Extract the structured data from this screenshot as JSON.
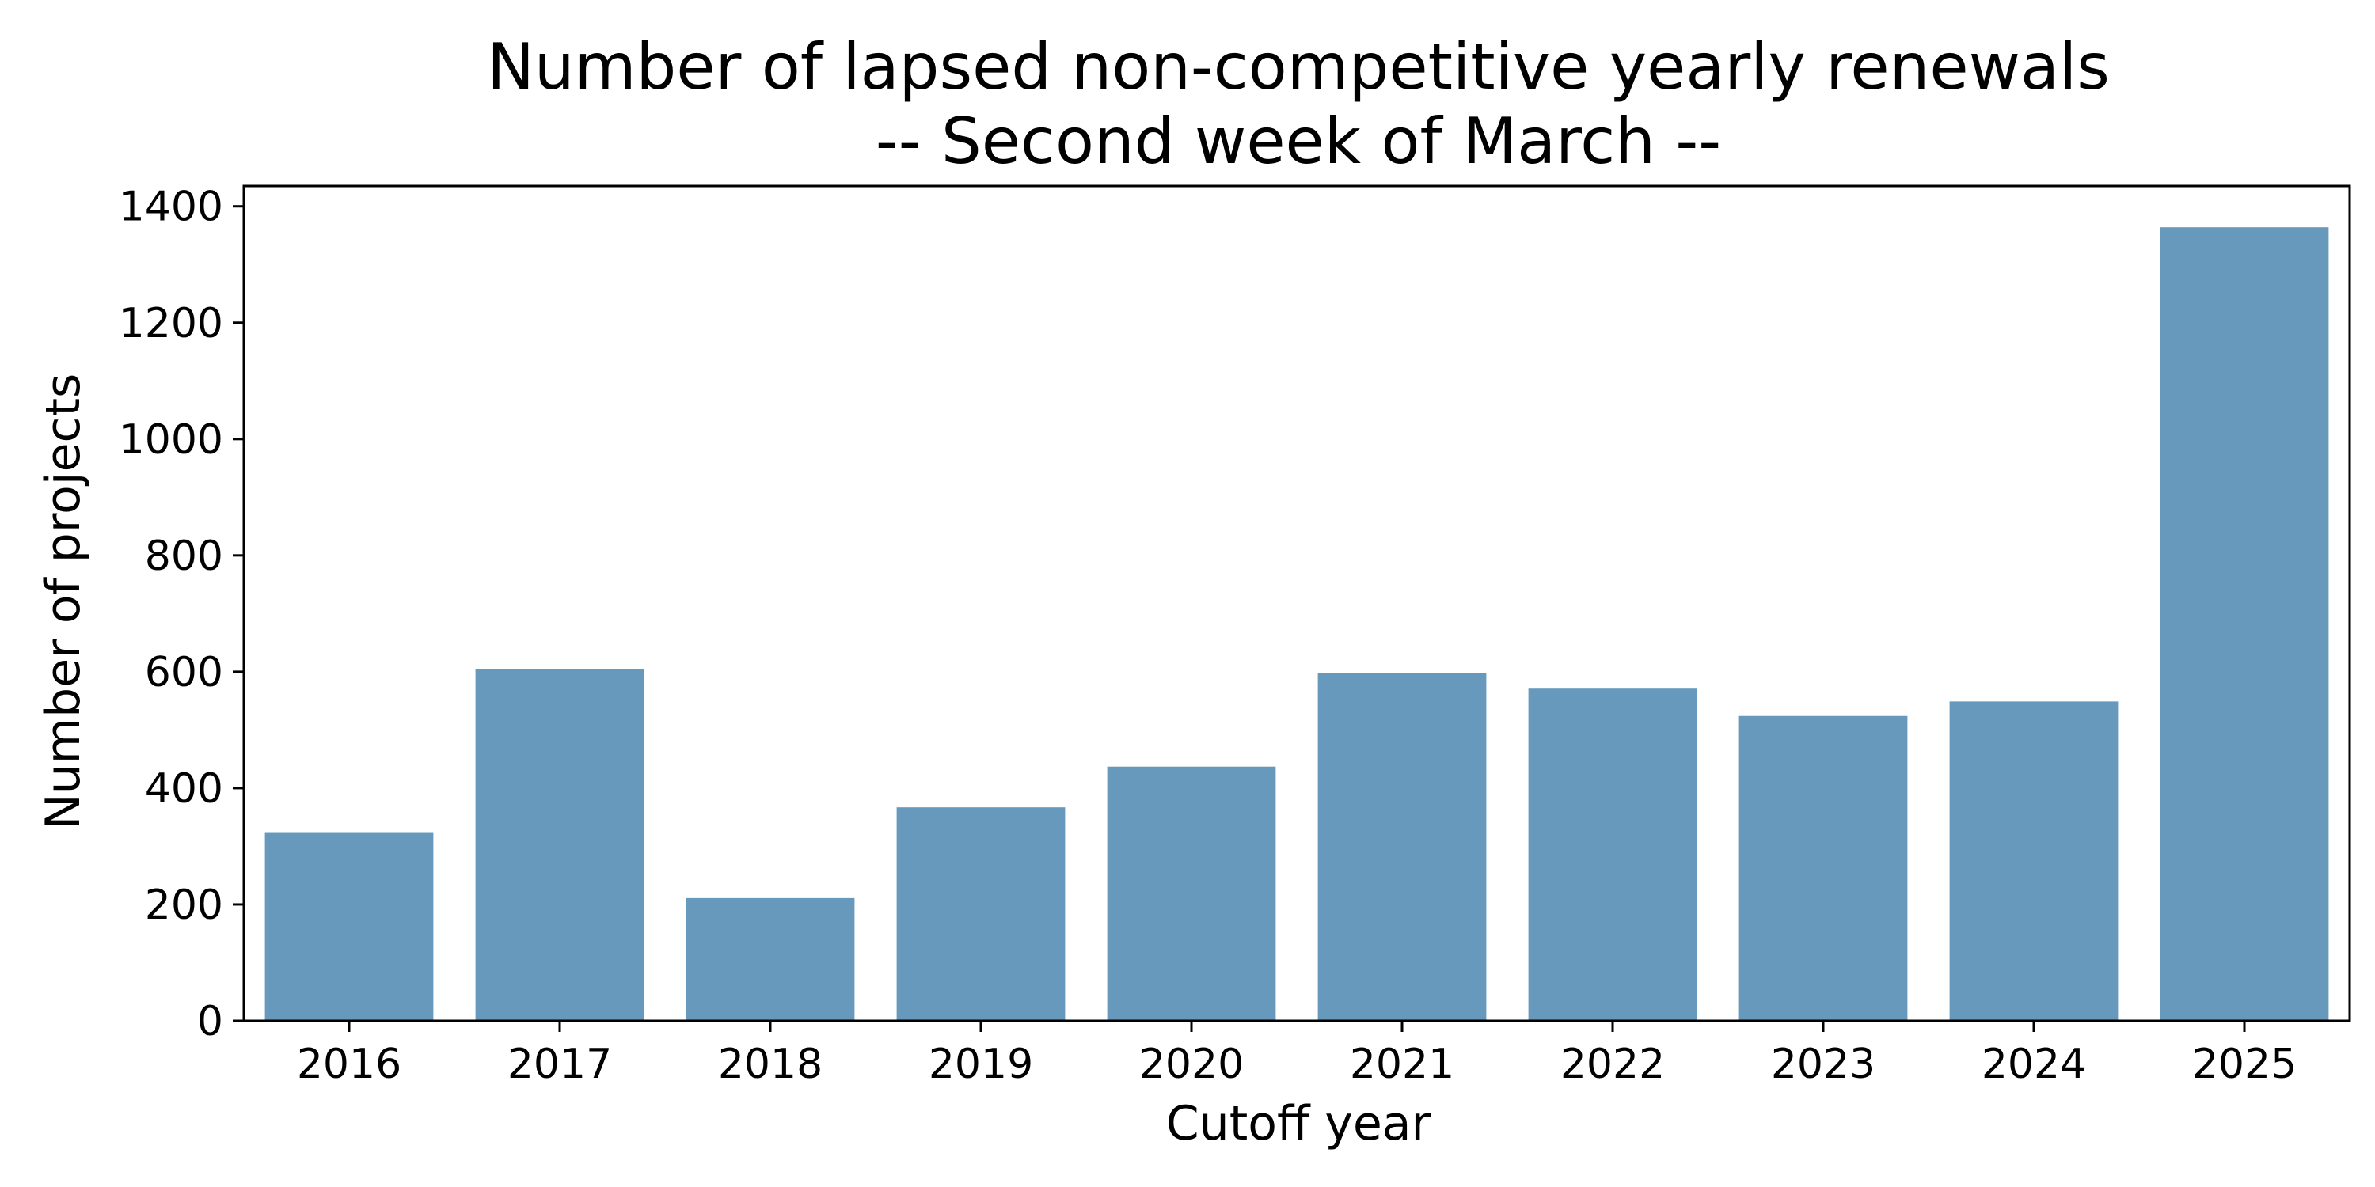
{
  "chart_data": {
    "type": "bar",
    "title": "Number of lapsed non-competitive yearly renewals",
    "subtitle": "-- Second week of March --",
    "xlabel": "Cutoff year",
    "ylabel": "Number of projects",
    "categories": [
      "2016",
      "2017",
      "2018",
      "2019",
      "2020",
      "2021",
      "2022",
      "2023",
      "2024",
      "2025"
    ],
    "values": [
      323,
      605,
      211,
      367,
      437,
      598,
      571,
      524,
      549,
      1364
    ],
    "ylim": [
      0,
      1435
    ],
    "yticks": [
      0,
      200,
      400,
      600,
      800,
      1000,
      1200,
      1400
    ],
    "grid": false,
    "legend": "none",
    "bar_color": "#6699bb"
  }
}
